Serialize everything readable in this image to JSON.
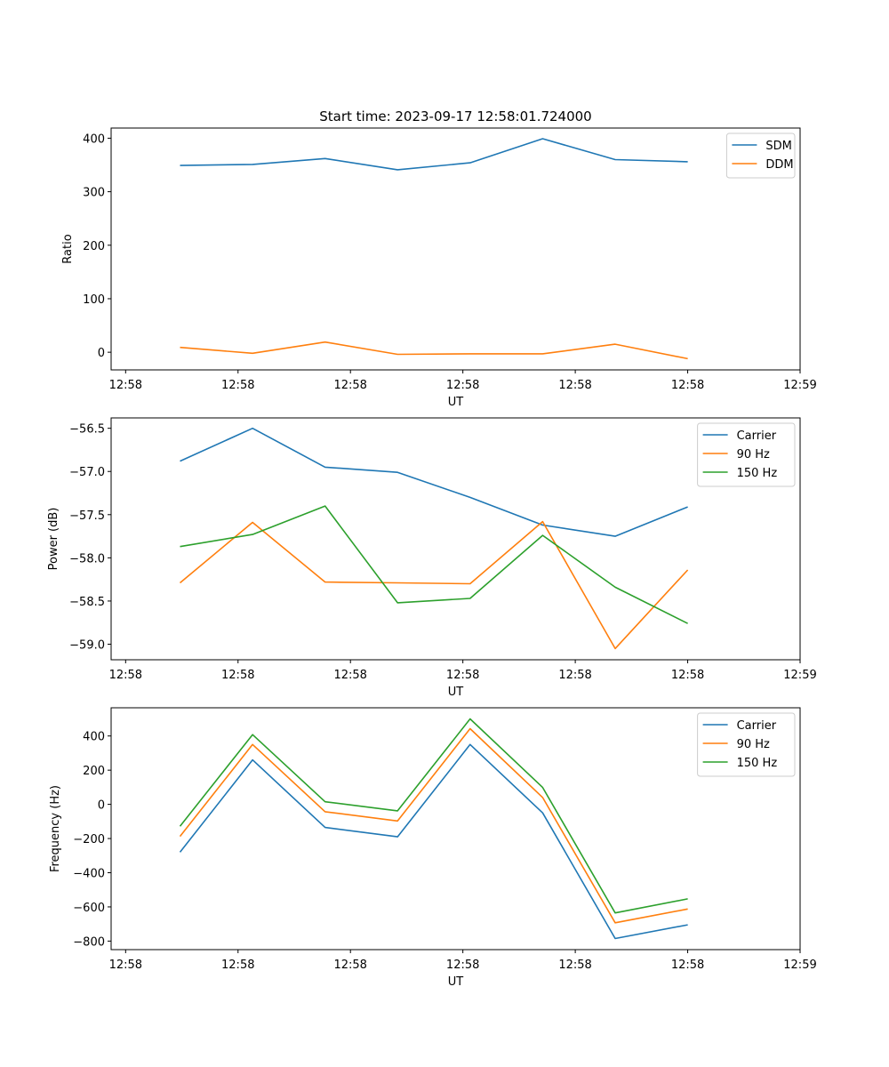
{
  "chart_data": [
    {
      "type": "line",
      "title": "Start time: 2023-09-17 12:58:01.724000",
      "xlabel": "UT",
      "ylabel": "Ratio",
      "x": [
        0,
        1,
        2,
        3,
        4,
        5,
        6,
        7
      ],
      "x_ticks": [
        -0.75,
        0.8,
        2.35,
        3.9,
        5.45,
        7.0,
        8.55
      ],
      "x_tick_labels": [
        "12:58",
        "12:58",
        "12:58",
        "12:58",
        "12:58",
        "12:58",
        "12:59"
      ],
      "xlim": [
        -0.95,
        8.55
      ],
      "ylim": [
        -33,
        419
      ],
      "y_ticks": [
        0,
        100,
        200,
        300,
        400
      ],
      "y_tick_labels": [
        "0",
        "100",
        "200",
        "300",
        "400"
      ],
      "legend_loc": "upper right",
      "series": [
        {
          "name": "SDM",
          "color": "#1f77b4",
          "values": [
            349,
            351,
            362,
            341,
            354,
            399,
            360,
            356
          ]
        },
        {
          "name": "DDM",
          "color": "#ff7f0e",
          "values": [
            9,
            -2,
            19,
            -4,
            -3,
            -3,
            15,
            -12
          ]
        }
      ]
    },
    {
      "type": "line",
      "title": "",
      "xlabel": "UT",
      "ylabel": "Power (dB)",
      "x": [
        0,
        1,
        2,
        3,
        4,
        5,
        6,
        7
      ],
      "x_ticks": [
        -0.75,
        0.8,
        2.35,
        3.9,
        5.45,
        7.0,
        8.55
      ],
      "x_tick_labels": [
        "12:58",
        "12:58",
        "12:58",
        "12:58",
        "12:58",
        "12:58",
        "12:59"
      ],
      "xlim": [
        -0.95,
        8.55
      ],
      "ylim": [
        -59.18,
        -56.38
      ],
      "y_ticks": [
        -56.5,
        -57.0,
        -57.5,
        -58.0,
        -58.5,
        -59.0
      ],
      "y_tick_labels": [
        "−56.5",
        "−57.0",
        "−57.5",
        "−58.0",
        "−58.5",
        "−59.0"
      ],
      "legend_loc": "upper right",
      "series": [
        {
          "name": "Carrier",
          "color": "#1f77b4",
          "values": [
            -56.88,
            -56.5,
            -56.95,
            -57.01,
            -57.3,
            -57.62,
            -57.75,
            -57.41
          ]
        },
        {
          "name": "90 Hz",
          "color": "#ff7f0e",
          "values": [
            -58.29,
            -57.59,
            -58.28,
            -58.29,
            -58.3,
            -57.58,
            -59.05,
            -58.14
          ]
        },
        {
          "name": "150 Hz",
          "color": "#2ca02c",
          "values": [
            -57.87,
            -57.73,
            -57.4,
            -58.52,
            -58.47,
            -57.74,
            -58.34,
            -58.76
          ]
        }
      ]
    },
    {
      "type": "line",
      "title": "",
      "xlabel": "UT",
      "ylabel": "Frequency (Hz)",
      "x": [
        0,
        1,
        2,
        3,
        4,
        5,
        6,
        7
      ],
      "x_ticks": [
        -0.75,
        0.8,
        2.35,
        3.9,
        5.45,
        7.0,
        8.55
      ],
      "x_tick_labels": [
        "12:58",
        "12:58",
        "12:58",
        "12:58",
        "12:58",
        "12:58",
        "12:59"
      ],
      "xlim": [
        -0.95,
        8.55
      ],
      "ylim": [
        -850,
        565
      ],
      "y_ticks": [
        400,
        200,
        0,
        -200,
        -400,
        -600,
        -800
      ],
      "y_tick_labels": [
        "400",
        "200",
        "0",
        "−200",
        "−400",
        "−600",
        "−800"
      ],
      "legend_loc": "upper right",
      "series": [
        {
          "name": "Carrier",
          "color": "#1f77b4",
          "values": [
            -280,
            260,
            -135,
            -190,
            350,
            -50,
            -785,
            -705
          ]
        },
        {
          "name": "90 Hz",
          "color": "#ff7f0e",
          "values": [
            -187,
            350,
            -43,
            -97,
            443,
            40,
            -693,
            -612
          ]
        },
        {
          "name": "150 Hz",
          "color": "#2ca02c",
          "values": [
            -128,
            408,
            15,
            -38,
            500,
            99,
            -635,
            -553
          ]
        }
      ]
    }
  ]
}
